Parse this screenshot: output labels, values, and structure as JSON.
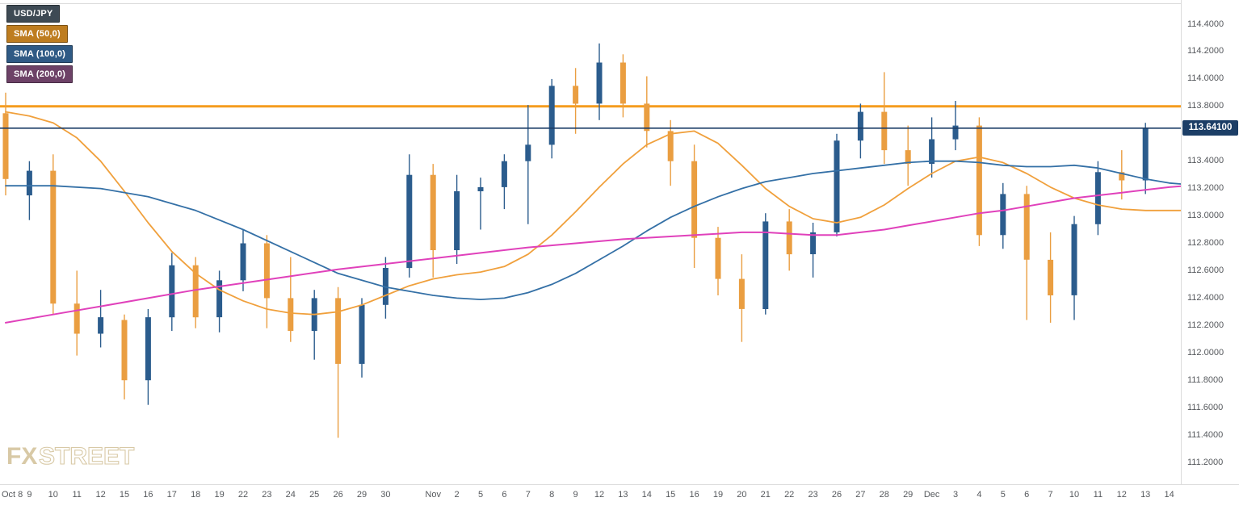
{
  "legend": {
    "symbol": "USD/JPY",
    "sma50": "SMA (50,0)",
    "sma100": "SMA (100,0)",
    "sma200": "SMA (200,0)"
  },
  "watermark": {
    "fx": "FX",
    "street": "STREET"
  },
  "price_badge": "113.64100",
  "colors": {
    "bull": "#2B5C8D",
    "bear": "#EA9E41",
    "sma50": "#F0A03C",
    "sma100": "#3470A6",
    "sma200": "#E041BB",
    "resistance": "#F59C1E",
    "price_line": "#1B3C66",
    "badge_bg": "#1C3E66",
    "legend_symbol_bg": "#3E4A54",
    "legend_sma50_bg": "#BE7D20",
    "legend_sma100_bg": "#2F5A85",
    "legend_sma200_bg": "#6D4267",
    "axis_text": "#55585c",
    "border": "#DCDCDC",
    "watermark": "#D8C9A6"
  },
  "chart_data": {
    "type": "candlestick",
    "symbol": "USD/JPY",
    "timeframe": "daily",
    "legend_position": "top-left",
    "grid": false,
    "ylim": [
      111.2,
      114.45
    ],
    "indicators": [
      {
        "name": "SMA (50,0)",
        "color": "#F0A03C"
      },
      {
        "name": "SMA (100,0)",
        "color": "#3470A6"
      },
      {
        "name": "SMA (200,0)",
        "color": "#E041BB"
      }
    ],
    "h_line": {
      "price": 113.8
    },
    "last_price_line": {
      "price": 113.641,
      "label": "113.64100"
    },
    "y_ticks": [
      {
        "p": 114.4,
        "t": "114.4000"
      },
      {
        "p": 114.2,
        "t": "114.2000"
      },
      {
        "p": 114.0,
        "t": "114.0000"
      },
      {
        "p": 113.8,
        "t": "113.8000"
      },
      {
        "p": 113.4,
        "t": "113.4000"
      },
      {
        "p": 113.2,
        "t": "113.2000"
      },
      {
        "p": 113.0,
        "t": "113.0000"
      },
      {
        "p": 112.8,
        "t": "112.8000"
      },
      {
        "p": 112.6,
        "t": "112.6000"
      },
      {
        "p": 112.4,
        "t": "112.4000"
      },
      {
        "p": 112.2,
        "t": "112.2000"
      },
      {
        "p": 112.0,
        "t": "112.0000"
      },
      {
        "p": 111.8,
        "t": "111.8000"
      },
      {
        "p": 111.6,
        "t": "111.6000"
      },
      {
        "p": 111.4,
        "t": "111.4000"
      },
      {
        "p": 111.2,
        "t": "111.2000"
      }
    ],
    "future_tick": {
      "i": 49,
      "label": "14"
    },
    "candles": [
      {
        "x": "Oct 8",
        "o": 113.75,
        "h": 113.9,
        "l": 113.15,
        "c": 113.27
      },
      {
        "x": "9",
        "o": 113.15,
        "h": 113.4,
        "l": 112.97,
        "c": 113.33
      },
      {
        "x": "10",
        "o": 113.33,
        "h": 113.45,
        "l": 112.28,
        "c": 112.36
      },
      {
        "x": "11",
        "o": 112.36,
        "h": 112.6,
        "l": 111.98,
        "c": 112.14
      },
      {
        "x": "12",
        "o": 112.14,
        "h": 112.46,
        "l": 112.04,
        "c": 112.26
      },
      {
        "x": "15",
        "o": 112.24,
        "h": 112.28,
        "l": 111.66,
        "c": 111.8
      },
      {
        "x": "16",
        "o": 111.8,
        "h": 112.32,
        "l": 111.62,
        "c": 112.26
      },
      {
        "x": "17",
        "o": 112.26,
        "h": 112.73,
        "l": 112.16,
        "c": 112.64
      },
      {
        "x": "18",
        "o": 112.64,
        "h": 112.7,
        "l": 112.18,
        "c": 112.26
      },
      {
        "x": "19",
        "o": 112.26,
        "h": 112.6,
        "l": 112.15,
        "c": 112.53
      },
      {
        "x": "22",
        "o": 112.53,
        "h": 112.9,
        "l": 112.45,
        "c": 112.8
      },
      {
        "x": "23",
        "o": 112.8,
        "h": 112.86,
        "l": 112.18,
        "c": 112.4
      },
      {
        "x": "24",
        "o": 112.4,
        "h": 112.7,
        "l": 112.08,
        "c": 112.16
      },
      {
        "x": "25",
        "o": 112.16,
        "h": 112.46,
        "l": 111.95,
        "c": 112.4
      },
      {
        "x": "26",
        "o": 112.4,
        "h": 112.48,
        "l": 111.38,
        "c": 111.92
      },
      {
        "x": "29",
        "o": 111.92,
        "h": 112.4,
        "l": 111.82,
        "c": 112.35
      },
      {
        "x": "30",
        "o": 112.35,
        "h": 112.7,
        "l": 112.25,
        "c": 112.62
      },
      {
        "x": "",
        "o": 112.62,
        "h": 113.45,
        "l": 112.55,
        "c": 113.3
      },
      {
        "x": "Nov",
        "o": 113.3,
        "h": 113.38,
        "l": 112.55,
        "c": 112.75
      },
      {
        "x": "2",
        "o": 112.75,
        "h": 113.3,
        "l": 112.65,
        "c": 113.18
      },
      {
        "x": "5",
        "o": 113.18,
        "h": 113.28,
        "l": 112.9,
        "c": 113.21
      },
      {
        "x": "6",
        "o": 113.21,
        "h": 113.45,
        "l": 113.05,
        "c": 113.4
      },
      {
        "x": "7",
        "o": 113.4,
        "h": 113.81,
        "l": 112.94,
        "c": 113.52
      },
      {
        "x": "8",
        "o": 113.52,
        "h": 114.0,
        "l": 113.42,
        "c": 113.95
      },
      {
        "x": "9",
        "o": 113.95,
        "h": 114.08,
        "l": 113.6,
        "c": 113.82
      },
      {
        "x": "12",
        "o": 113.82,
        "h": 114.26,
        "l": 113.7,
        "c": 114.12
      },
      {
        "x": "13",
        "o": 114.12,
        "h": 114.18,
        "l": 113.72,
        "c": 113.82
      },
      {
        "x": "14",
        "o": 113.82,
        "h": 114.02,
        "l": 113.5,
        "c": 113.62
      },
      {
        "x": "15",
        "o": 113.62,
        "h": 113.7,
        "l": 113.22,
        "c": 113.4
      },
      {
        "x": "16",
        "o": 113.4,
        "h": 113.52,
        "l": 112.62,
        "c": 112.84
      },
      {
        "x": "19",
        "o": 112.84,
        "h": 112.92,
        "l": 112.42,
        "c": 112.54
      },
      {
        "x": "20",
        "o": 112.54,
        "h": 112.72,
        "l": 112.08,
        "c": 112.32
      },
      {
        "x": "21",
        "o": 112.32,
        "h": 113.02,
        "l": 112.28,
        "c": 112.96
      },
      {
        "x": "22",
        "o": 112.96,
        "h": 113.05,
        "l": 112.6,
        "c": 112.72
      },
      {
        "x": "23",
        "o": 112.72,
        "h": 112.95,
        "l": 112.55,
        "c": 112.88
      },
      {
        "x": "26",
        "o": 112.88,
        "h": 113.6,
        "l": 112.85,
        "c": 113.55
      },
      {
        "x": "27",
        "o": 113.55,
        "h": 113.82,
        "l": 113.42,
        "c": 113.76
      },
      {
        "x": "28",
        "o": 113.76,
        "h": 114.05,
        "l": 113.38,
        "c": 113.48
      },
      {
        "x": "29",
        "o": 113.48,
        "h": 113.66,
        "l": 113.22,
        "c": 113.38
      },
      {
        "x": "Dec",
        "o": 113.38,
        "h": 113.72,
        "l": 113.28,
        "c": 113.56
      },
      {
        "x": "3",
        "o": 113.56,
        "h": 113.84,
        "l": 113.48,
        "c": 113.66
      },
      {
        "x": "4",
        "o": 113.66,
        "h": 113.72,
        "l": 112.78,
        "c": 112.86
      },
      {
        "x": "5",
        "o": 112.86,
        "h": 113.24,
        "l": 112.76,
        "c": 113.16
      },
      {
        "x": "6",
        "o": 113.16,
        "h": 113.22,
        "l": 112.24,
        "c": 112.68
      },
      {
        "x": "7",
        "o": 112.68,
        "h": 112.88,
        "l": 112.22,
        "c": 112.42
      },
      {
        "x": "10",
        "o": 112.42,
        "h": 113.0,
        "l": 112.24,
        "c": 112.94
      },
      {
        "x": "11",
        "o": 112.94,
        "h": 113.4,
        "l": 112.86,
        "c": 113.32
      },
      {
        "x": "12",
        "o": 113.32,
        "h": 113.48,
        "l": 113.12,
        "c": 113.26
      },
      {
        "x": "13",
        "o": 113.26,
        "h": 113.68,
        "l": 113.16,
        "c": 113.64
      }
    ],
    "sma50": [
      [
        0,
        113.76
      ],
      [
        1,
        113.73
      ],
      [
        2,
        113.68
      ],
      [
        3,
        113.57
      ],
      [
        4,
        113.4
      ],
      [
        5,
        113.18
      ],
      [
        6,
        112.95
      ],
      [
        7,
        112.74
      ],
      [
        8,
        112.58
      ],
      [
        9,
        112.46
      ],
      [
        10,
        112.38
      ],
      [
        11,
        112.32
      ],
      [
        12,
        112.29
      ],
      [
        13,
        112.28
      ],
      [
        14,
        112.3
      ],
      [
        15,
        112.35
      ],
      [
        16,
        112.42
      ],
      [
        17,
        112.49
      ],
      [
        18,
        112.54
      ],
      [
        19,
        112.57
      ],
      [
        20,
        112.59
      ],
      [
        21,
        112.63
      ],
      [
        22,
        112.72
      ],
      [
        23,
        112.86
      ],
      [
        24,
        113.03
      ],
      [
        25,
        113.21
      ],
      [
        26,
        113.38
      ],
      [
        27,
        113.52
      ],
      [
        28,
        113.6
      ],
      [
        29,
        113.62
      ],
      [
        30,
        113.53
      ],
      [
        31,
        113.37
      ],
      [
        32,
        113.2
      ],
      [
        33,
        113.07
      ],
      [
        34,
        112.98
      ],
      [
        35,
        112.95
      ],
      [
        36,
        112.99
      ],
      [
        37,
        113.08
      ],
      [
        38,
        113.2
      ],
      [
        39,
        113.31
      ],
      [
        40,
        113.4
      ],
      [
        41,
        113.43
      ],
      [
        42,
        113.39
      ],
      [
        43,
        113.31
      ],
      [
        44,
        113.21
      ],
      [
        45,
        113.13
      ],
      [
        46,
        113.08
      ],
      [
        47,
        113.05
      ],
      [
        48,
        113.04
      ],
      [
        49.7,
        113.04
      ]
    ],
    "sma100": [
      [
        0,
        113.22
      ],
      [
        2,
        113.22
      ],
      [
        4,
        113.2
      ],
      [
        6,
        113.14
      ],
      [
        8,
        113.04
      ],
      [
        10,
        112.9
      ],
      [
        12,
        112.74
      ],
      [
        14,
        112.58
      ],
      [
        16,
        112.48
      ],
      [
        18,
        112.42
      ],
      [
        19,
        112.4
      ],
      [
        20,
        112.39
      ],
      [
        21,
        112.4
      ],
      [
        22,
        112.44
      ],
      [
        23,
        112.5
      ],
      [
        24,
        112.58
      ],
      [
        25,
        112.68
      ],
      [
        26,
        112.78
      ],
      [
        27,
        112.89
      ],
      [
        28,
        112.99
      ],
      [
        29,
        113.07
      ],
      [
        30,
        113.14
      ],
      [
        31,
        113.2
      ],
      [
        32,
        113.25
      ],
      [
        33,
        113.28
      ],
      [
        34,
        113.31
      ],
      [
        35,
        113.33
      ],
      [
        36,
        113.35
      ],
      [
        37,
        113.37
      ],
      [
        38,
        113.39
      ],
      [
        39,
        113.4
      ],
      [
        40,
        113.4
      ],
      [
        41,
        113.39
      ],
      [
        42,
        113.37
      ],
      [
        43,
        113.36
      ],
      [
        44,
        113.36
      ],
      [
        45,
        113.37
      ],
      [
        46,
        113.35
      ],
      [
        47,
        113.31
      ],
      [
        48,
        113.27
      ],
      [
        49,
        113.24
      ],
      [
        49.7,
        113.23
      ]
    ],
    "sma200": [
      [
        0,
        112.22
      ],
      [
        2,
        112.28
      ],
      [
        4,
        112.34
      ],
      [
        6,
        112.4
      ],
      [
        8,
        112.46
      ],
      [
        10,
        112.51
      ],
      [
        12,
        112.56
      ],
      [
        14,
        112.61
      ],
      [
        16,
        112.65
      ],
      [
        18,
        112.69
      ],
      [
        20,
        112.73
      ],
      [
        22,
        112.77
      ],
      [
        24,
        112.8
      ],
      [
        26,
        112.83
      ],
      [
        28,
        112.85
      ],
      [
        30,
        112.87
      ],
      [
        31,
        112.88
      ],
      [
        32,
        112.88
      ],
      [
        33,
        112.87
      ],
      [
        34,
        112.86
      ],
      [
        35,
        112.86
      ],
      [
        36,
        112.88
      ],
      [
        37,
        112.9
      ],
      [
        38,
        112.93
      ],
      [
        39,
        112.96
      ],
      [
        40,
        112.99
      ],
      [
        41,
        113.02
      ],
      [
        42,
        113.04
      ],
      [
        43,
        113.07
      ],
      [
        44,
        113.1
      ],
      [
        45,
        113.13
      ],
      [
        46,
        113.15
      ],
      [
        47,
        113.17
      ],
      [
        48,
        113.19
      ],
      [
        49,
        113.21
      ],
      [
        49.7,
        113.22
      ]
    ]
  }
}
